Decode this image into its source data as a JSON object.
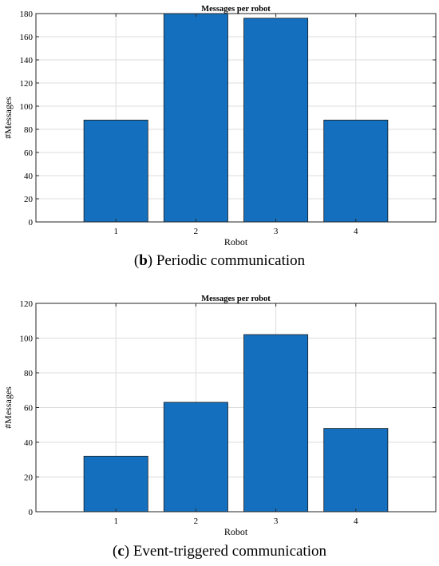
{
  "chart_data": [
    {
      "type": "bar",
      "title": "Messages per robot",
      "xlabel": "Robot",
      "ylabel": "#Messages",
      "categories": [
        "1",
        "2",
        "3",
        "4"
      ],
      "values": [
        88,
        181,
        176,
        88
      ],
      "ylim": [
        0,
        180
      ],
      "yticks": [
        0,
        20,
        40,
        60,
        80,
        100,
        120,
        140,
        160,
        180
      ],
      "xlim": [
        0,
        5
      ],
      "grid": true,
      "bar_color": "#1470bf",
      "caption_label": "b",
      "caption_text": "Periodic communication"
    },
    {
      "type": "bar",
      "title": "Messages per robot",
      "xlabel": "Robot",
      "ylabel": "#Messages",
      "categories": [
        "1",
        "2",
        "3",
        "4"
      ],
      "values": [
        32,
        63,
        102,
        48
      ],
      "ylim": [
        0,
        120
      ],
      "yticks": [
        0,
        20,
        40,
        60,
        80,
        100,
        120
      ],
      "xlim": [
        0,
        5
      ],
      "grid": true,
      "bar_color": "#1470bf",
      "caption_label": "c",
      "caption_text": "Event-triggered communication"
    }
  ]
}
